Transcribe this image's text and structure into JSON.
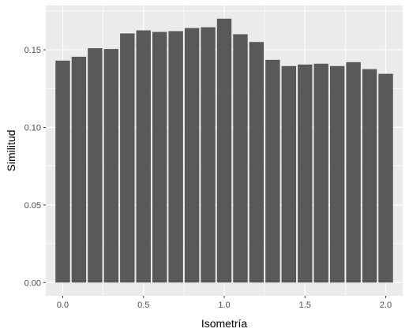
{
  "chart_data": {
    "type": "bar",
    "title": "",
    "xlabel": "Isometría",
    "ylabel": "Similitud",
    "x": [
      0.0,
      0.1,
      0.2,
      0.3,
      0.4,
      0.5,
      0.6,
      0.7,
      0.8,
      0.9,
      1.0,
      1.1,
      1.2,
      1.3,
      1.4,
      1.5,
      1.6,
      1.7,
      1.8,
      1.9,
      2.0
    ],
    "values": [
      0.143,
      0.1455,
      0.151,
      0.1505,
      0.1605,
      0.1625,
      0.1615,
      0.162,
      0.164,
      0.1645,
      0.17,
      0.16,
      0.155,
      0.1435,
      0.1395,
      0.1405,
      0.141,
      0.1395,
      0.142,
      0.1375,
      0.1345
    ],
    "xlim": [
      -0.105,
      2.105
    ],
    "ylim": [
      -0.0085,
      0.1785
    ],
    "xticks": [
      0.0,
      0.5,
      1.0,
      1.5,
      2.0
    ],
    "xtick_labels": [
      "0.0",
      "0.5",
      "1.0",
      "1.5",
      "2.0"
    ],
    "yticks": [
      0.0,
      0.05,
      0.1,
      0.15
    ],
    "ytick_labels": [
      "0.00",
      "0.05",
      "0.10",
      "0.15"
    ],
    "grid": true,
    "colors": {
      "bar": "#595959",
      "panel": "#ebebeb",
      "grid": "#ffffff",
      "tick_text": "#4d4d4d",
      "tick_mark": "#333333"
    }
  }
}
